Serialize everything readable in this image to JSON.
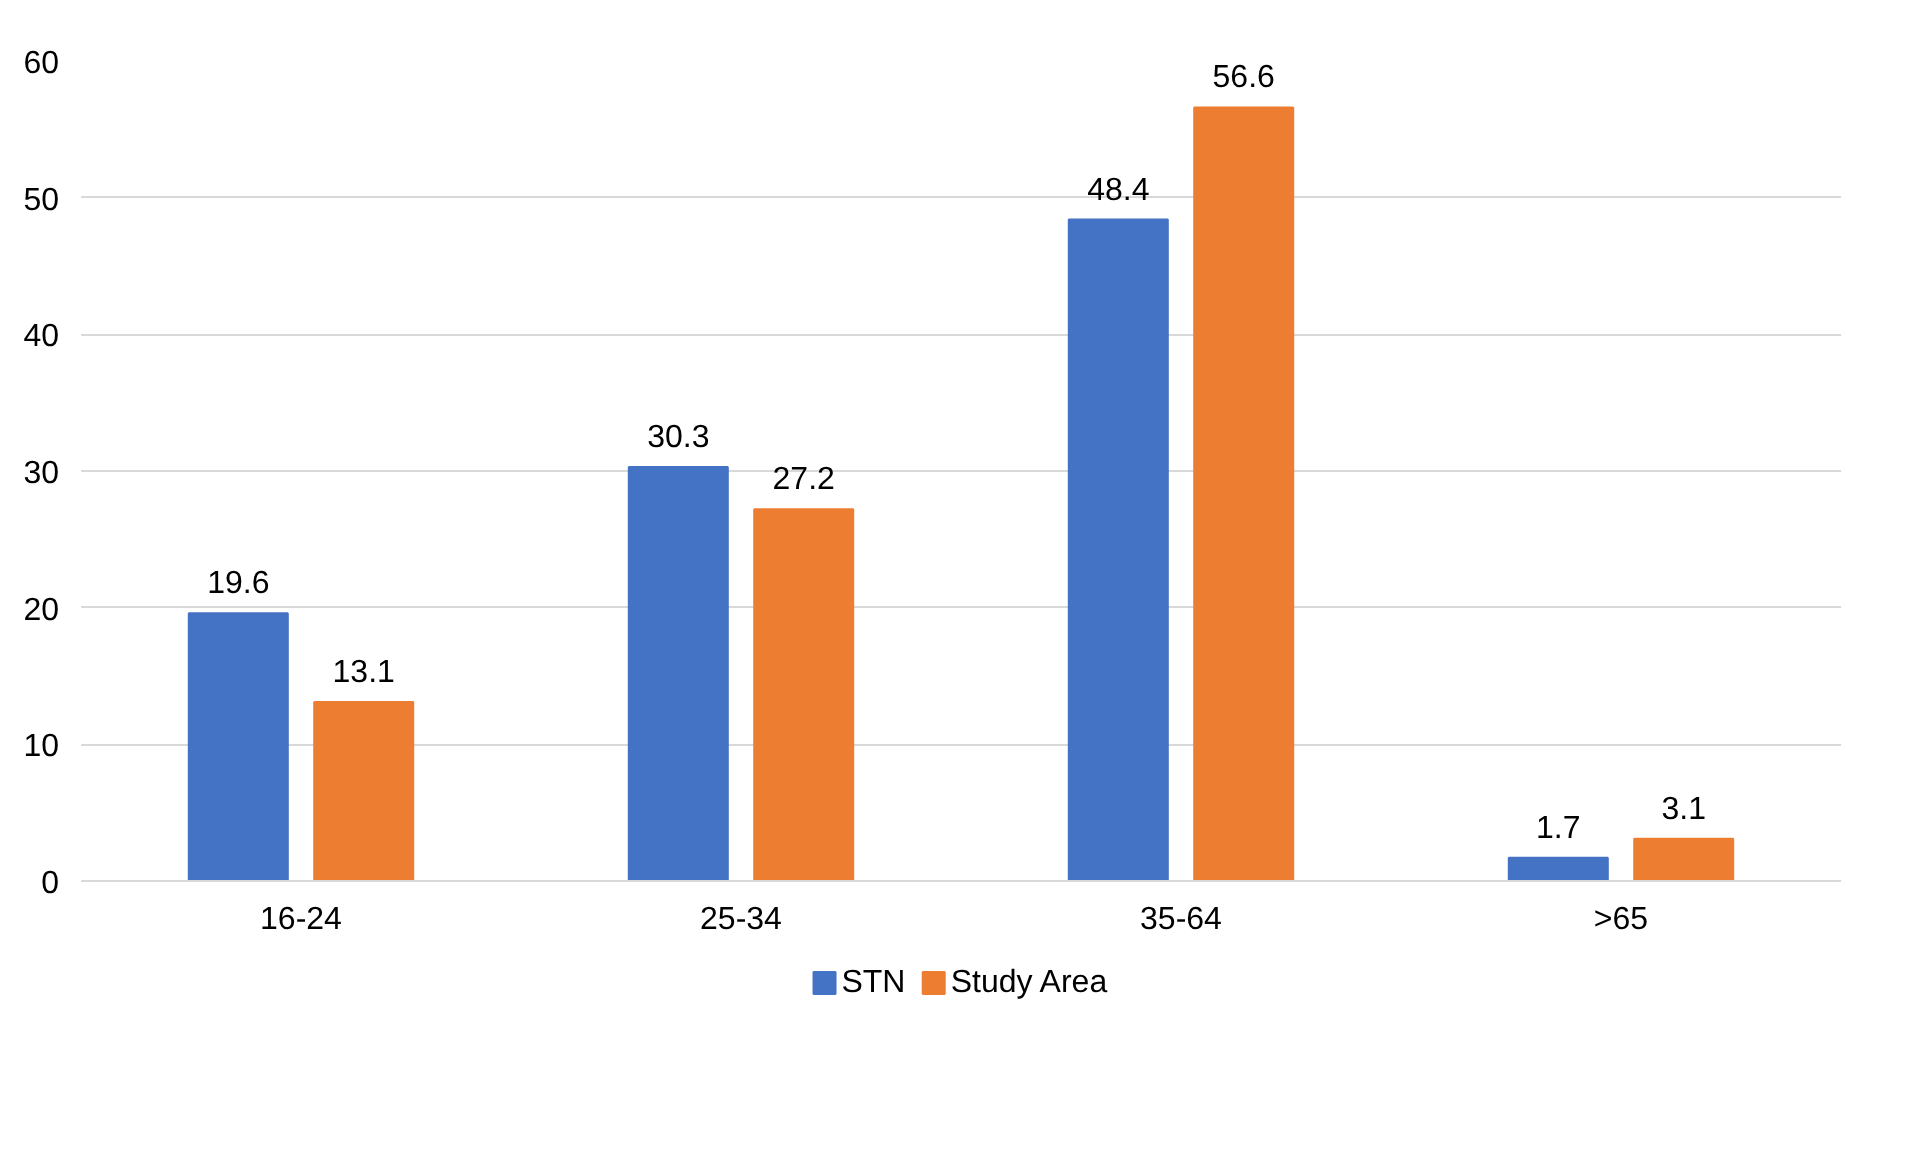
{
  "chart_data": {
    "type": "bar",
    "categories": [
      "16-24",
      "25-34",
      "35-64",
      ">65"
    ],
    "series": [
      {
        "name": "STN",
        "color": "#4472c4",
        "values": [
          19.6,
          30.3,
          48.4,
          1.7
        ]
      },
      {
        "name": "Study Area",
        "color": "#ed7d31",
        "values": [
          13.1,
          27.2,
          56.6,
          3.1
        ]
      }
    ],
    "ylim": [
      0,
      60
    ],
    "yticks": [
      0,
      10,
      20,
      30,
      40,
      50,
      60
    ],
    "grid": "y",
    "legend": "bottom",
    "data_labels": true
  }
}
